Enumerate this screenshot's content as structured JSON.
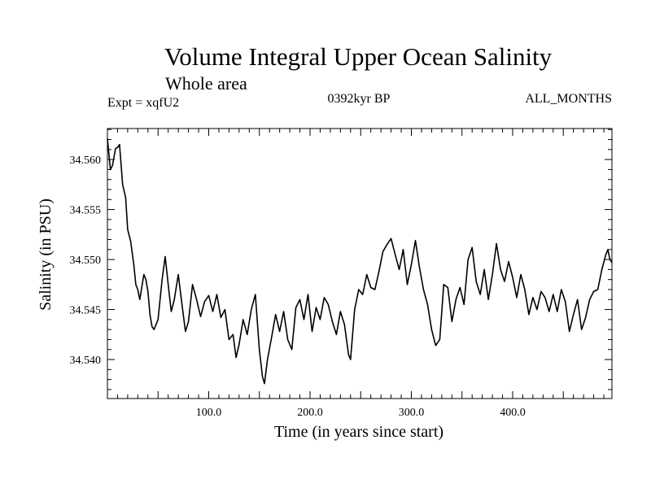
{
  "chart_data": {
    "type": "line",
    "title": "Volume Integral Upper Ocean Salinity",
    "subtitle": "Whole area",
    "experiment_label": "Expt = xqfU2",
    "period_label": "0392kyr BP",
    "months_label": "ALL_MONTHS",
    "xlabel": "Time (in years since start)",
    "ylabel": "Salinity (in PSU)",
    "xlim": [
      0,
      498
    ],
    "ylim": [
      34.5361,
      34.5631
    ],
    "x_ticks": [
      100,
      200,
      300,
      400
    ],
    "x_tick_labels": [
      "100.0",
      "200.0",
      "300.0",
      "400.0"
    ],
    "y_ticks": [
      34.54,
      34.545,
      34.55,
      34.555,
      34.56
    ],
    "y_tick_labels": [
      "34.540",
      "34.545",
      "34.550",
      "34.555",
      "34.560"
    ],
    "grid": false,
    "series": [
      {
        "name": "salinity",
        "color": "#000000",
        "x": [
          0,
          3,
          5,
          8,
          10,
          12,
          15,
          18,
          20,
          23,
          26,
          28,
          30,
          32,
          36,
          38,
          40,
          42,
          44,
          46,
          50,
          54,
          57,
          60,
          63,
          66,
          70,
          74,
          77,
          80,
          84,
          88,
          92,
          96,
          100,
          104,
          108,
          112,
          116,
          120,
          124,
          127,
          130,
          134,
          138,
          142,
          146,
          150,
          153,
          155,
          158,
          162,
          166,
          170,
          174,
          178,
          182,
          186,
          190,
          194,
          198,
          202,
          206,
          210,
          214,
          218,
          222,
          226,
          230,
          234,
          238,
          240,
          244,
          248,
          252,
          256,
          260,
          264,
          268,
          272,
          276,
          280,
          284,
          288,
          292,
          296,
          300,
          304,
          308,
          312,
          316,
          320,
          324,
          328,
          332,
          336,
          340,
          344,
          348,
          352,
          356,
          360,
          364,
          368,
          372,
          376,
          380,
          384,
          388,
          392,
          396,
          400,
          404,
          408,
          412,
          416,
          420,
          424,
          428,
          432,
          436,
          440,
          444,
          448,
          452,
          456,
          460,
          464,
          468,
          472,
          476,
          480,
          484,
          488,
          492,
          494,
          496,
          498
        ],
        "values": [
          34.5621,
          34.559,
          34.5594,
          34.5611,
          34.5612,
          34.5615,
          34.5575,
          34.5562,
          34.553,
          34.5518,
          34.5495,
          34.5475,
          34.547,
          34.546,
          34.5485,
          34.548,
          34.5468,
          34.5445,
          34.5433,
          34.543,
          34.544,
          34.548,
          34.5503,
          34.5475,
          34.5448,
          34.546,
          34.5485,
          34.5452,
          34.5428,
          34.5438,
          34.5475,
          34.546,
          34.5443,
          34.5458,
          34.5464,
          34.5448,
          34.5465,
          34.5442,
          34.545,
          34.542,
          34.5425,
          34.5402,
          34.5415,
          34.544,
          34.5425,
          34.545,
          34.5465,
          34.541,
          34.5383,
          34.5376,
          34.54,
          34.5422,
          34.5445,
          34.5428,
          34.5448,
          34.542,
          34.541,
          34.5452,
          34.546,
          34.544,
          34.5465,
          34.5428,
          34.5452,
          34.544,
          34.5462,
          34.5455,
          34.5438,
          34.5425,
          34.5448,
          34.5435,
          34.5405,
          34.54,
          34.545,
          34.547,
          34.5465,
          34.5485,
          34.5472,
          34.547,
          34.5488,
          34.5508,
          34.5515,
          34.5521,
          34.5505,
          34.549,
          34.551,
          34.5475,
          34.5495,
          34.5519,
          34.5492,
          34.547,
          34.5455,
          34.543,
          34.5414,
          34.542,
          34.5475,
          34.5472,
          34.5438,
          34.546,
          34.5472,
          34.5455,
          34.55,
          34.5512,
          34.5478,
          34.5465,
          34.549,
          34.546,
          34.5485,
          34.5516,
          34.549,
          34.5478,
          34.5498,
          34.5482,
          34.5462,
          34.5485,
          34.547,
          34.5445,
          34.5462,
          34.545,
          34.5468,
          34.5462,
          34.5448,
          34.5465,
          34.5448,
          34.547,
          34.5458,
          34.5428,
          34.5445,
          34.546,
          34.543,
          34.5442,
          34.546,
          34.5468,
          34.547,
          34.549,
          34.5505,
          34.551,
          34.55,
          34.5497
        ]
      }
    ]
  }
}
